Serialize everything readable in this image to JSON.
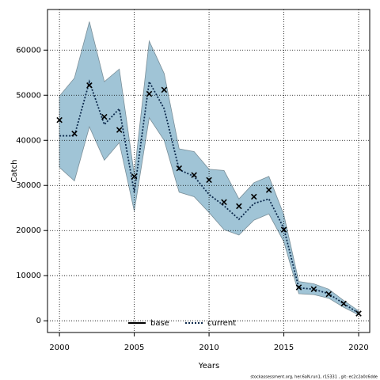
{
  "chart_data": {
    "type": "line",
    "xlabel": "Years",
    "ylabel": "Catch",
    "footer": "stockassessment.org, her.6aN.run1, r15331 , git: ec2c2a0c6dde",
    "x": [
      2000,
      2001,
      2002,
      2003,
      2004,
      2005,
      2006,
      2007,
      2008,
      2009,
      2010,
      2011,
      2012,
      2013,
      2014,
      2015,
      2016,
      2017,
      2018,
      2019,
      2020
    ],
    "band": {
      "color": "#a0c4d6",
      "edge": "#7a8f99",
      "upper": [
        49800,
        53800,
        66300,
        53000,
        55800,
        32400,
        62000,
        54800,
        38100,
        37500,
        33600,
        33300,
        27000,
        30600,
        32000,
        23500,
        8700,
        8200,
        7000,
        4500,
        2200
      ],
      "lower": [
        34000,
        31000,
        43000,
        35600,
        39500,
        24300,
        45000,
        40000,
        28500,
        27500,
        24000,
        20200,
        19000,
        22300,
        23700,
        17500,
        6000,
        5800,
        5000,
        3000,
        1300
      ]
    },
    "series": [
      {
        "name": "current",
        "color": "#0d2a4d",
        "values": [
          41000,
          41000,
          53000,
          43500,
          47000,
          28500,
          53000,
          47000,
          33500,
          32000,
          28000,
          25500,
          22500,
          26000,
          27000,
          20500,
          7300,
          7000,
          6000,
          3800,
          1700
        ]
      }
    ],
    "observed": {
      "color": "#000",
      "values": [
        44500,
        41500,
        52200,
        45200,
        42300,
        32000,
        50300,
        51200,
        33800,
        32300,
        31200,
        26300,
        25400,
        27500,
        29000,
        20200,
        7400,
        7000,
        5900,
        3800,
        1600
      ]
    },
    "legend": [
      {
        "name": "base",
        "color": "#000",
        "dash": "solid"
      },
      {
        "name": "current",
        "color": "#0d2a4d",
        "dash": "dotted"
      }
    ],
    "xlim": [
      1999.2,
      2020.74
    ],
    "ylim": [
      -2600,
      69000
    ],
    "xticks": [
      2000,
      2005,
      2010,
      2015,
      2020
    ],
    "yticks": [
      0,
      10000,
      20000,
      30000,
      40000,
      50000,
      60000
    ],
    "grid": true
  }
}
